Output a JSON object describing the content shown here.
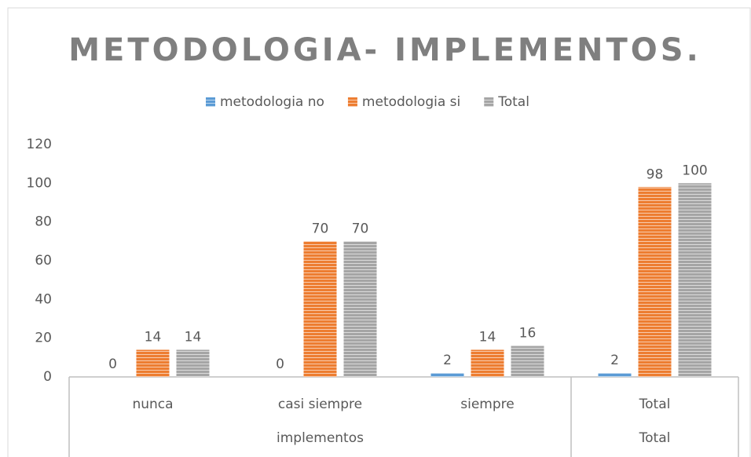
{
  "chart_data": {
    "type": "bar",
    "title": "METODOLOGIA- IMPLEMENTOS.",
    "categories": [
      "nunca",
      "casi siempre",
      "siempre",
      "Total"
    ],
    "category_groups": [
      {
        "label": "implementos",
        "span": 3
      },
      {
        "label": "Total",
        "span": 1
      }
    ],
    "series": [
      {
        "name": "metodologia no",
        "color": "#5b9bd5",
        "values": [
          0,
          0,
          2,
          2
        ]
      },
      {
        "name": "metodologia si",
        "color": "#ed7d31",
        "values": [
          14,
          70,
          14,
          98
        ]
      },
      {
        "name": "Total",
        "color": "#a5a5a5",
        "values": [
          14,
          70,
          16,
          100
        ]
      }
    ],
    "ylim": [
      0,
      120
    ],
    "yticks": [
      0,
      20,
      40,
      60,
      80,
      100,
      120
    ],
    "grid": false,
    "legend": "top"
  }
}
